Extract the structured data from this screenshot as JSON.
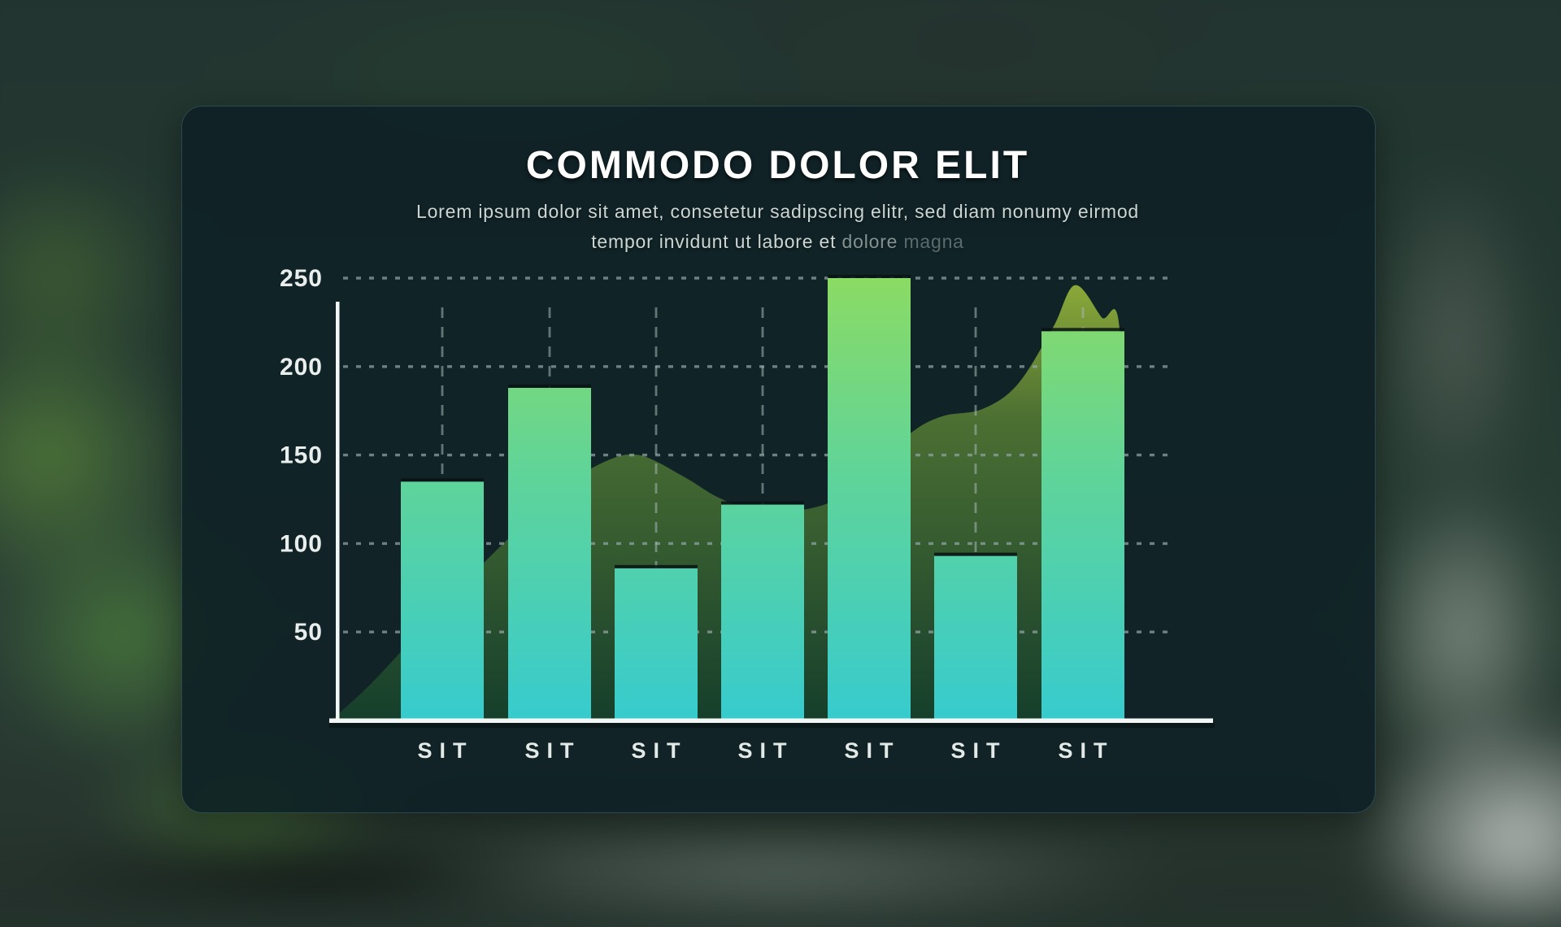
{
  "panel": {
    "title": "COMMODO DOLOR ELIT",
    "subtitle_line1": "Lorem ipsum dolor sit amet, consetetur sadipscing elitr, sed diam nonumy eirmod",
    "subtitle_line2_main": "tempor invidunt ut labore et ",
    "subtitle_line2_fade1": "dolore ",
    "subtitle_line2_fade2": "magna"
  },
  "chart_data": {
    "type": "combo",
    "title": "COMMODO DOLOR ELIT",
    "categories": [
      "SIT",
      "SIT",
      "SIT",
      "SIT",
      "SIT",
      "SIT",
      "SIT"
    ],
    "series": [
      {
        "name": "bars",
        "type": "bar",
        "values": [
          135,
          188,
          86,
          122,
          250,
          93,
          220
        ]
      },
      {
        "name": "background-area",
        "type": "area",
        "profile": [
          [
            0,
            0
          ],
          [
            0.04,
            18
          ],
          [
            0.078,
            38
          ],
          [
            0.14,
            72
          ],
          [
            0.2,
            102
          ],
          [
            0.26,
            130
          ],
          [
            0.31,
            146
          ],
          [
            0.35,
            150
          ],
          [
            0.4,
            138
          ],
          [
            0.44,
            126
          ],
          [
            0.48,
            119
          ],
          [
            0.52,
            118
          ],
          [
            0.57,
            124
          ],
          [
            0.61,
            141
          ],
          [
            0.66,
            163
          ],
          [
            0.695,
            172
          ],
          [
            0.74,
            176
          ],
          [
            0.78,
            190
          ],
          [
            0.82,
            222
          ],
          [
            0.845,
            246
          ],
          [
            0.875,
            228
          ],
          [
            0.897,
            212
          ],
          [
            0.9,
            0
          ]
        ]
      }
    ],
    "xlabel": "",
    "ylabel": "",
    "ylim": [
      0,
      250
    ],
    "yticks": [
      50,
      100,
      150,
      200,
      250
    ],
    "grid": true,
    "legend": false,
    "colors": {
      "bar_top": "#8BDB64",
      "bar_mid": "#5FD49A",
      "bar_bottom": "#37CBCE",
      "bar_cap": "rgba(9,19,21,0.85)",
      "area_top": "#93B13A",
      "area_mid": "#4E7233",
      "area_bottom": "#16402C",
      "axis": "#F2F6F4",
      "grid_h": "#93A5A4",
      "grid_v": "#A7B8B7",
      "tick_text": "#E9EEEC",
      "label_text": "#E2E9E7"
    }
  }
}
